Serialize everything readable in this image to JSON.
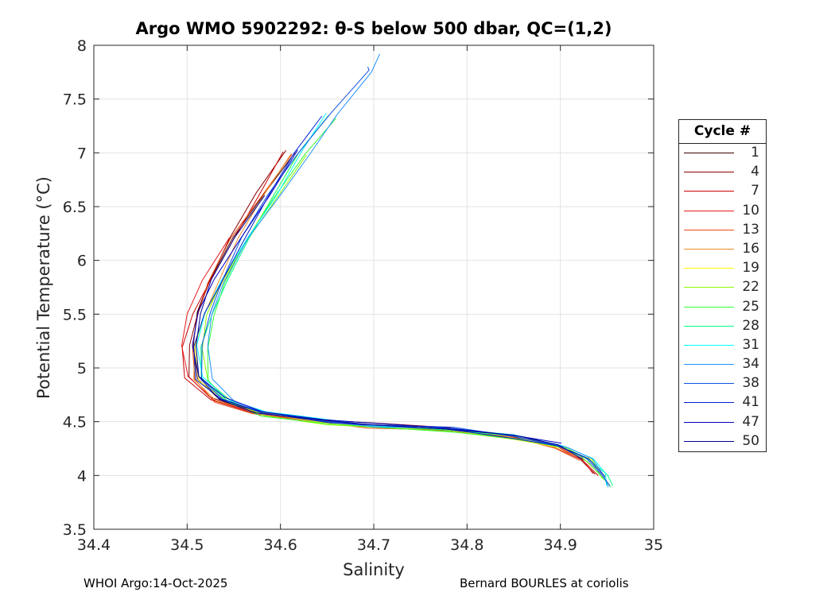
{
  "chart_data": {
    "type": "line",
    "title": "Argo WMO 5902292: θ-S below 500 dbar,  QC=(1,2)",
    "xlabel": "Salinity",
    "ylabel": "Potential Temperature (°C)",
    "xlim": [
      34.4,
      35
    ],
    "ylim": [
      3.5,
      8
    ],
    "xticks": [
      "34.4",
      "34.5",
      "34.6",
      "34.7",
      "34.8",
      "34.9",
      "35"
    ],
    "yticks": [
      "3.5",
      "4",
      "4.5",
      "5",
      "5.5",
      "6",
      "6.5",
      "7",
      "7.5",
      "8"
    ],
    "grid": true,
    "legend_title": "Cycle #",
    "legend_position": "outside-right",
    "base_curve": [
      [
        34.69,
        7.75
      ],
      [
        34.65,
        7.35
      ],
      [
        34.62,
        7.0
      ],
      [
        34.59,
        6.6
      ],
      [
        34.56,
        6.2
      ],
      [
        34.535,
        5.8
      ],
      [
        34.52,
        5.5
      ],
      [
        34.512,
        5.2
      ],
      [
        34.515,
        4.9
      ],
      [
        34.54,
        4.7
      ],
      [
        34.58,
        4.58
      ],
      [
        34.65,
        4.5
      ],
      [
        34.7,
        4.46
      ],
      [
        34.78,
        4.43
      ],
      [
        34.85,
        4.36
      ],
      [
        34.9,
        4.27
      ],
      [
        34.93,
        4.15
      ],
      [
        34.945,
        4.0
      ],
      [
        34.95,
        3.9
      ]
    ],
    "series": [
      {
        "name": "1",
        "color": "#3f0000",
        "ds": -0.008,
        "dt": 0.01,
        "tmax": 7.2,
        "tmin": 4.15
      },
      {
        "name": "4",
        "color": "#8b0000",
        "ds": -0.012,
        "dt": 0.02,
        "tmax": 7.25,
        "tmin": 4.05
      },
      {
        "name": "7",
        "color": "#cc0000",
        "ds": -0.014,
        "dt": 0.0,
        "tmax": 7.1,
        "tmin": 4.02
      },
      {
        "name": "10",
        "color": "#e41a1a",
        "ds": -0.016,
        "dt": 0.01,
        "tmax": 6.55,
        "tmin": 4.0
      },
      {
        "name": "13",
        "color": "#ec4a14",
        "ds": -0.01,
        "dt": -0.01,
        "tmax": 7.15,
        "tmin": 4.05
      },
      {
        "name": "16",
        "color": "#ee8c28",
        "ds": -0.005,
        "dt": 0.0,
        "tmax": 7.2,
        "tmin": 4.0
      },
      {
        "name": "19",
        "color": "#ffff00",
        "ds": 0.0,
        "dt": -0.01,
        "tmax": 7.1,
        "tmin": 3.95
      },
      {
        "name": "22",
        "color": "#88ff00",
        "ds": 0.004,
        "dt": -0.02,
        "tmax": 7.0,
        "tmin": 3.95
      },
      {
        "name": "25",
        "color": "#33ff33",
        "ds": 0.006,
        "dt": -0.02,
        "tmax": 7.6,
        "tmin": 3.9
      },
      {
        "name": "28",
        "color": "#00ff88",
        "ds": 0.004,
        "dt": 0.0,
        "tmax": 7.65,
        "tmin": 3.92
      },
      {
        "name": "31",
        "color": "#00ffff",
        "ds": 0.002,
        "dt": 0.01,
        "tmax": 7.5,
        "tmin": 3.85
      },
      {
        "name": "34",
        "color": "#2090ff",
        "ds": 0.008,
        "dt": 0.0,
        "tmax": 7.92,
        "tmin": 3.82
      },
      {
        "name": "38",
        "color": "#1050e0",
        "ds": 0.001,
        "dt": 0.01,
        "tmax": 7.8,
        "tmin": 3.95
      },
      {
        "name": "41",
        "color": "#0020d0",
        "ds": -0.002,
        "dt": 0.0,
        "tmax": 7.4,
        "tmin": 4.0
      },
      {
        "name": "47",
        "color": "#0000c0",
        "ds": -0.004,
        "dt": 0.02,
        "tmax": 7.3,
        "tmin": 4.27
      },
      {
        "name": "50",
        "color": "#000090",
        "ds": -0.006,
        "dt": 0.01,
        "tmax": 6.6,
        "tmin": 4.15
      }
    ]
  },
  "footer": {
    "left": "WHOI Argo:14-Oct-2025",
    "right": "Bernard BOURLES at coriolis"
  }
}
